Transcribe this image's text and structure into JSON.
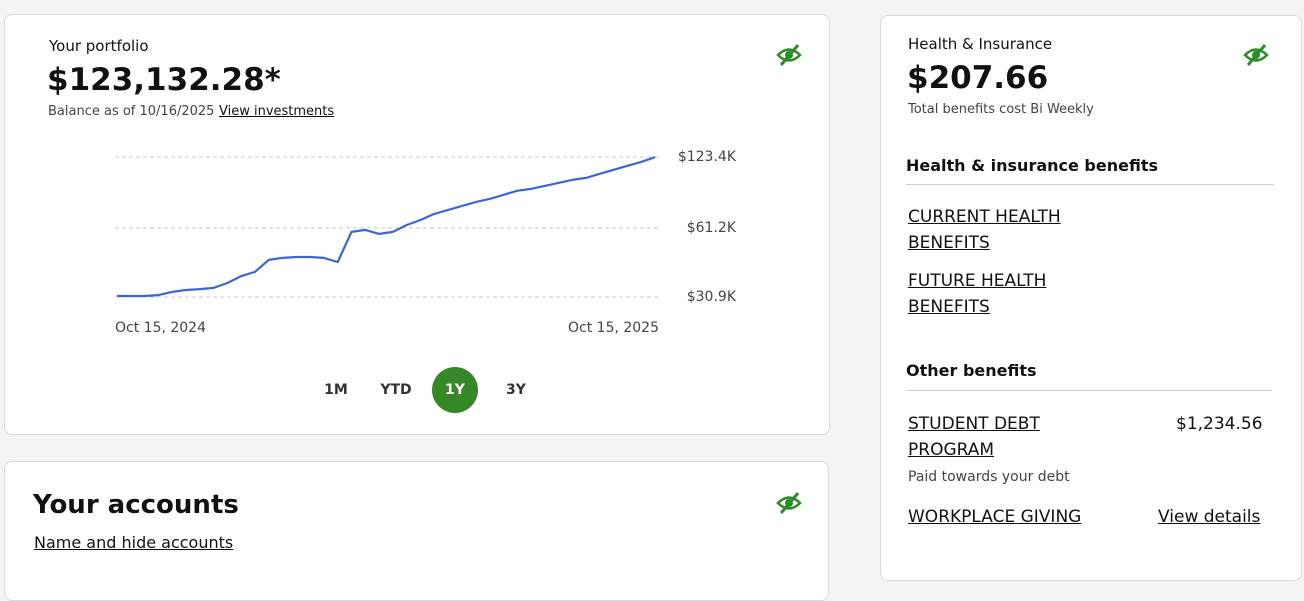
{
  "portfolio": {
    "title": "Your portfolio",
    "balance": "$123,132.28*",
    "as_of": "Balance as of 10/16/2025",
    "link": "View investments",
    "ranges": [
      "1M",
      "YTD",
      "1Y",
      "3Y"
    ],
    "selected_range": 2,
    "chart_data": {
      "type": "line",
      "categories": [
        "Oct 15, 2024",
        null,
        null,
        null,
        null,
        null,
        null,
        null,
        null,
        null,
        null,
        null,
        null,
        null,
        null,
        null,
        null,
        null,
        null,
        null,
        null,
        null,
        null,
        null,
        null,
        null,
        null,
        null,
        null,
        null,
        null,
        null,
        null,
        null,
        null,
        null,
        null,
        null,
        null,
        "Oct 15, 2025"
      ],
      "values": [
        31200,
        31200,
        31200,
        31500,
        32500,
        33100,
        33400,
        33800,
        35500,
        38000,
        39600,
        44600,
        45500,
        45900,
        45900,
        45500,
        43700,
        58800,
        60000,
        57700,
        58800,
        63000,
        66200,
        70300,
        73100,
        76000,
        79000,
        81500,
        84800,
        88300,
        90000,
        92700,
        95500,
        98400,
        100400,
        104500,
        108700,
        113100,
        117600,
        123132
      ],
      "color": "#3b67d6",
      "log_scale": true,
      "ylim": [
        30900,
        123400
      ],
      "yticks": [
        {
          "value": 30900,
          "label": "$30.9K"
        },
        {
          "value": 61200,
          "label": "$61.2K"
        },
        {
          "value": 123400,
          "label": "$123.4K"
        }
      ],
      "grid": true
    }
  },
  "accounts": {
    "title": "Your accounts",
    "link": "Name and hide accounts"
  },
  "health": {
    "title": "Health & Insurance",
    "amount": "$207.66",
    "note": "Total benefits cost Bi Weekly",
    "section": "Health & insurance benefits",
    "links": [
      "CURRENT HEALTH BENEFITS",
      "FUTURE HEALTH BENEFITS"
    ],
    "other_section": "Other benefits",
    "student_debt": {
      "label": "STUDENT DEBT PROGRAM",
      "amount": "$1,234.56",
      "note": "Paid towards your debt"
    },
    "giving": {
      "label": "WORKPLACE GIVING",
      "link": "View details"
    }
  }
}
